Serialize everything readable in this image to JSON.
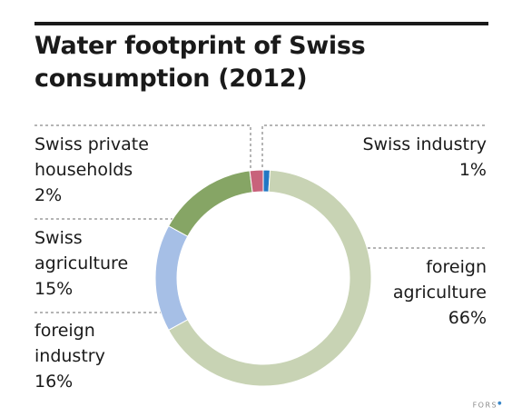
{
  "title": "Water footprint of Swiss consumption (2012)",
  "chart_data": {
    "type": "pie",
    "donut": true,
    "title": "Water footprint of Swiss consumption (2012)",
    "slices": [
      {
        "name_lines": [
          "Swiss industry",
          "1%"
        ],
        "value": 1,
        "color": "#2277c4"
      },
      {
        "name_lines": [
          "foreign",
          "agriculture",
          "66%"
        ],
        "value": 66,
        "color": "#c8d3b4"
      },
      {
        "name_lines": [
          "foreign",
          "industry",
          "16%"
        ],
        "value": 16,
        "color": "#a6bfe6"
      },
      {
        "name_lines": [
          "Swiss",
          "agriculture",
          "15%"
        ],
        "value": 15,
        "color": "#86a565"
      },
      {
        "name_lines": [
          "Swiss private",
          "households",
          "2%"
        ],
        "value": 2,
        "color": "#c8627b"
      }
    ],
    "start_angle_deg": 0,
    "direction": "clockwise"
  },
  "footer": {
    "brand": "FORS",
    "mark": "●"
  }
}
